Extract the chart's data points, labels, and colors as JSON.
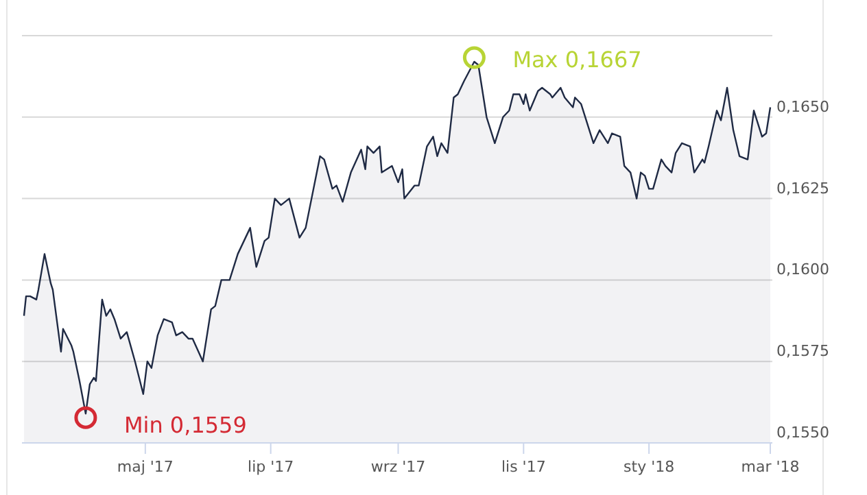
{
  "chart_data": {
    "type": "area",
    "grid": "y",
    "xlim": [
      "2017-03-02",
      "2018-03-02"
    ],
    "ylim": [
      0.155,
      0.1675
    ],
    "xticks": [
      {
        "value": "2017-05-01",
        "label": "maj '17"
      },
      {
        "value": "2017-07-01",
        "label": "lip '17"
      },
      {
        "value": "2017-09-01",
        "label": "wrz '17"
      },
      {
        "value": "2017-11-01",
        "label": "lis '17"
      },
      {
        "value": "2018-01-01",
        "label": "sty '18"
      },
      {
        "value": "2018-03-01",
        "label": "mar '18"
      }
    ],
    "yticks": [
      {
        "value": 0.155,
        "label": "0,1550"
      },
      {
        "value": 0.1575,
        "label": "0,1575"
      },
      {
        "value": 0.16,
        "label": "0,1600"
      },
      {
        "value": 0.1625,
        "label": "0,1625"
      },
      {
        "value": 0.165,
        "label": "0,1650"
      },
      {
        "value": 0.1675,
        "label": null
      }
    ],
    "annotations": [
      {
        "text": "Min 0,1559",
        "x": "2017-04-02",
        "y": 0.1559
      },
      {
        "text": "Max 0,1667",
        "x": "2017-10-08",
        "y": 0.1667
      }
    ],
    "series": [
      {
        "color": "#1f2a44",
        "x": [
          "2017-03-03",
          "2017-03-04",
          "2017-03-06",
          "2017-03-09",
          "2017-03-10",
          "2017-03-13",
          "2017-03-16",
          "2017-03-17",
          "2017-03-21",
          "2017-03-22",
          "2017-03-26",
          "2017-03-27",
          "2017-03-30",
          "2017-04-02",
          "2017-04-04",
          "2017-04-06",
          "2017-04-07",
          "2017-04-10",
          "2017-04-12",
          "2017-04-14",
          "2017-04-16",
          "2017-04-19",
          "2017-04-22",
          "2017-04-26",
          "2017-04-30",
          "2017-05-02",
          "2017-05-04",
          "2017-05-07",
          "2017-05-10",
          "2017-05-14",
          "2017-05-16",
          "2017-05-19",
          "2017-05-22",
          "2017-05-24",
          "2017-05-29",
          "2017-06-02",
          "2017-06-04",
          "2017-06-07",
          "2017-06-11",
          "2017-06-15",
          "2017-06-18",
          "2017-06-21",
          "2017-06-24",
          "2017-06-28",
          "2017-06-30",
          "2017-07-03",
          "2017-07-06",
          "2017-07-10",
          "2017-07-15",
          "2017-07-18",
          "2017-07-25",
          "2017-07-27",
          "2017-07-31",
          "2017-08-02",
          "2017-08-05",
          "2017-08-09",
          "2017-08-14",
          "2017-08-16",
          "2017-08-17",
          "2017-08-20",
          "2017-08-23",
          "2017-08-24",
          "2017-08-29",
          "2017-09-01",
          "2017-09-03",
          "2017-09-04",
          "2017-09-09",
          "2017-09-11",
          "2017-09-15",
          "2017-09-18",
          "2017-09-20",
          "2017-09-22",
          "2017-09-25",
          "2017-09-28",
          "2017-09-30",
          "2017-10-03",
          "2017-10-08",
          "2017-10-10",
          "2017-10-14",
          "2017-10-18",
          "2017-10-22",
          "2017-10-25",
          "2017-10-27",
          "2017-10-30",
          "2017-11-01",
          "2017-11-02",
          "2017-11-04",
          "2017-11-08",
          "2017-11-10",
          "2017-11-14",
          "2017-11-15",
          "2017-11-19",
          "2017-11-21",
          "2017-11-25",
          "2017-11-26",
          "2017-11-29",
          "2017-12-01",
          "2017-12-05",
          "2017-12-08",
          "2017-12-12",
          "2017-12-14",
          "2017-12-18",
          "2017-12-20",
          "2017-12-23",
          "2017-12-26",
          "2017-12-28",
          "2017-12-30",
          "2018-01-01",
          "2018-01-03",
          "2018-01-07",
          "2018-01-09",
          "2018-01-12",
          "2018-01-14",
          "2018-01-17",
          "2018-01-21",
          "2018-01-23",
          "2018-01-27",
          "2018-01-28",
          "2018-01-30",
          "2018-02-03",
          "2018-02-05",
          "2018-02-08",
          "2018-02-11",
          "2018-02-14",
          "2018-02-18",
          "2018-02-21",
          "2018-02-25",
          "2018-02-27",
          "2018-03-01"
        ],
        "values": [
          0.1589,
          0.1595,
          0.1595,
          0.1594,
          0.1597,
          0.1608,
          0.1599,
          0.1597,
          0.1578,
          0.1585,
          0.158,
          0.1578,
          0.1569,
          0.1559,
          0.1568,
          0.157,
          0.1569,
          0.1594,
          0.1589,
          0.1591,
          0.1588,
          0.1582,
          0.1584,
          0.1575,
          0.1565,
          0.1575,
          0.1573,
          0.1583,
          0.1588,
          0.1587,
          0.1583,
          0.1584,
          0.1582,
          0.1582,
          0.1575,
          0.1591,
          0.1592,
          0.16,
          0.16,
          0.1608,
          0.1612,
          0.1616,
          0.1604,
          0.1612,
          0.1613,
          0.1625,
          0.1623,
          0.1625,
          0.1613,
          0.1616,
          0.1638,
          0.1637,
          0.1628,
          0.1629,
          0.1624,
          0.1633,
          0.164,
          0.1634,
          0.1641,
          0.1639,
          0.1641,
          0.1633,
          0.1635,
          0.163,
          0.1634,
          0.1625,
          0.1629,
          0.1629,
          0.1641,
          0.1644,
          0.1638,
          0.1642,
          0.1639,
          0.1656,
          0.1657,
          0.1661,
          0.1667,
          0.1666,
          0.165,
          0.1642,
          0.165,
          0.1652,
          0.1657,
          0.1657,
          0.1654,
          0.1657,
          0.1652,
          0.1658,
          0.1659,
          0.1657,
          0.1656,
          0.1659,
          0.1656,
          0.1653,
          0.1656,
          0.1654,
          0.165,
          0.1642,
          0.1646,
          0.1642,
          0.1645,
          0.1644,
          0.1635,
          0.1633,
          0.1625,
          0.1633,
          0.1632,
          0.1628,
          0.1628,
          0.1637,
          0.1635,
          0.1633,
          0.1639,
          0.1642,
          0.1641,
          0.1633,
          0.1637,
          0.1636,
          0.1641,
          0.1652,
          0.1649,
          0.1659,
          0.1646,
          0.1638,
          0.1637,
          0.1652,
          0.1644,
          0.1645,
          0.1653
        ]
      }
    ]
  }
}
